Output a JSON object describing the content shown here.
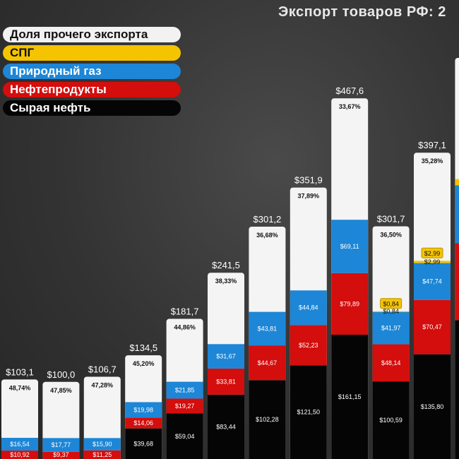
{
  "title": "Экспорт товаров РФ: 2",
  "legend": [
    {
      "key": "other",
      "label": "Доля прочего экспорта",
      "bg": "#f2f2f2",
      "fg": "#111111"
    },
    {
      "key": "lng",
      "label": "СПГ",
      "bg": "#f5c400",
      "fg": "#111111"
    },
    {
      "key": "gas",
      "label": "Природный газ",
      "bg": "#1d86d6",
      "fg": "#ffffff"
    },
    {
      "key": "oilprod",
      "label": "Нефтепродукты",
      "bg": "#d40d0d",
      "fg": "#ffffff"
    },
    {
      "key": "crude",
      "label": "Сырая нефть",
      "bg": "#050505",
      "fg": "#ffffff"
    }
  ],
  "chart_data": {
    "type": "bar",
    "stacked": true,
    "title": "Экспорт товаров РФ: 2",
    "ylim": [
      0,
      520
    ],
    "bars": [
      {
        "total": "$103,1",
        "total_value": 103.1,
        "other_pct": "48,74%",
        "crude": null,
        "crude_label": "",
        "oilprod": 10.92,
        "oilprod_label": "$10,92",
        "gas": 16.54,
        "gas_label": "$16,54",
        "lng": null,
        "lng_label": ""
      },
      {
        "total": "$100,0",
        "total_value": 100.0,
        "other_pct": "47,85%",
        "crude": null,
        "crude_label": "",
        "oilprod": 9.37,
        "oilprod_label": "$9,37",
        "gas": 17.77,
        "gas_label": "$17,77",
        "lng": null,
        "lng_label": ""
      },
      {
        "total": "$106,7",
        "total_value": 106.7,
        "other_pct": "47,28%",
        "crude": null,
        "crude_label": "",
        "oilprod": 11.25,
        "oilprod_label": "$11,25",
        "gas": 15.9,
        "gas_label": "$15,90",
        "lng": null,
        "lng_label": ""
      },
      {
        "total": "$134,5",
        "total_value": 134.5,
        "other_pct": "45,20%",
        "crude": 39.68,
        "crude_label": "$39,68",
        "oilprod": 14.06,
        "oilprod_label": "$14,06",
        "gas": 19.98,
        "gas_label": "$19,98",
        "lng": null,
        "lng_label": ""
      },
      {
        "total": "$181,7",
        "total_value": 181.7,
        "other_pct": "44,86%",
        "crude": 59.04,
        "crude_label": "$59,04",
        "oilprod": 19.27,
        "oilprod_label": "$19,27",
        "gas": 21.85,
        "gas_label": "$21,85",
        "lng": null,
        "lng_label": ""
      },
      {
        "total": "$241,5",
        "total_value": 241.5,
        "other_pct": "38,33%",
        "crude": 83.44,
        "crude_label": "$83,44",
        "oilprod": 33.81,
        "oilprod_label": "$33,81",
        "gas": 31.67,
        "gas_label": "$31,67",
        "lng": null,
        "lng_label": ""
      },
      {
        "total": "$301,2",
        "total_value": 301.2,
        "other_pct": "36,68%",
        "crude": 102.28,
        "crude_label": "$102,28",
        "oilprod": 44.67,
        "oilprod_label": "$44,67",
        "gas": 43.81,
        "gas_label": "$43,81",
        "lng": null,
        "lng_label": ""
      },
      {
        "total": "$351,9",
        "total_value": 351.9,
        "other_pct": "37,89%",
        "crude": 121.5,
        "crude_label": "$121,50",
        "oilprod": 52.23,
        "oilprod_label": "$52,23",
        "gas": 44.84,
        "gas_label": "$44,84",
        "lng": null,
        "lng_label": ""
      },
      {
        "total": "$467,6",
        "total_value": 467.6,
        "other_pct": "33,67%",
        "crude": 161.15,
        "crude_label": "$161,15",
        "oilprod": 79.89,
        "oilprod_label": "$79,89",
        "gas": 69.11,
        "gas_label": "$69,11",
        "lng": null,
        "lng_label": ""
      },
      {
        "total": "$301,7",
        "total_value": 301.7,
        "other_pct": "36,50%",
        "crude": 100.59,
        "crude_label": "$100,59",
        "oilprod": 48.14,
        "oilprod_label": "$48,14",
        "gas": 41.97,
        "gas_label": "$41,97",
        "lng": 0.84,
        "lng_label": "$0,84"
      },
      {
        "total": "$397,1",
        "total_value": 397.1,
        "other_pct": "35,28%",
        "crude": 135.8,
        "crude_label": "$135,80",
        "oilprod": 70.47,
        "oilprod_label": "$70,47",
        "gas": 47.74,
        "gas_label": "$47,74",
        "lng": 2.99,
        "lng_label": "$2,99"
      },
      {
        "total": "",
        "total_value": 520,
        "other_pct": "",
        "crude": 180,
        "crude_label": "",
        "oilprod": 100,
        "oilprod_label": "",
        "gas": 75,
        "gas_label": "",
        "lng": 8,
        "lng_label": ""
      }
    ]
  }
}
